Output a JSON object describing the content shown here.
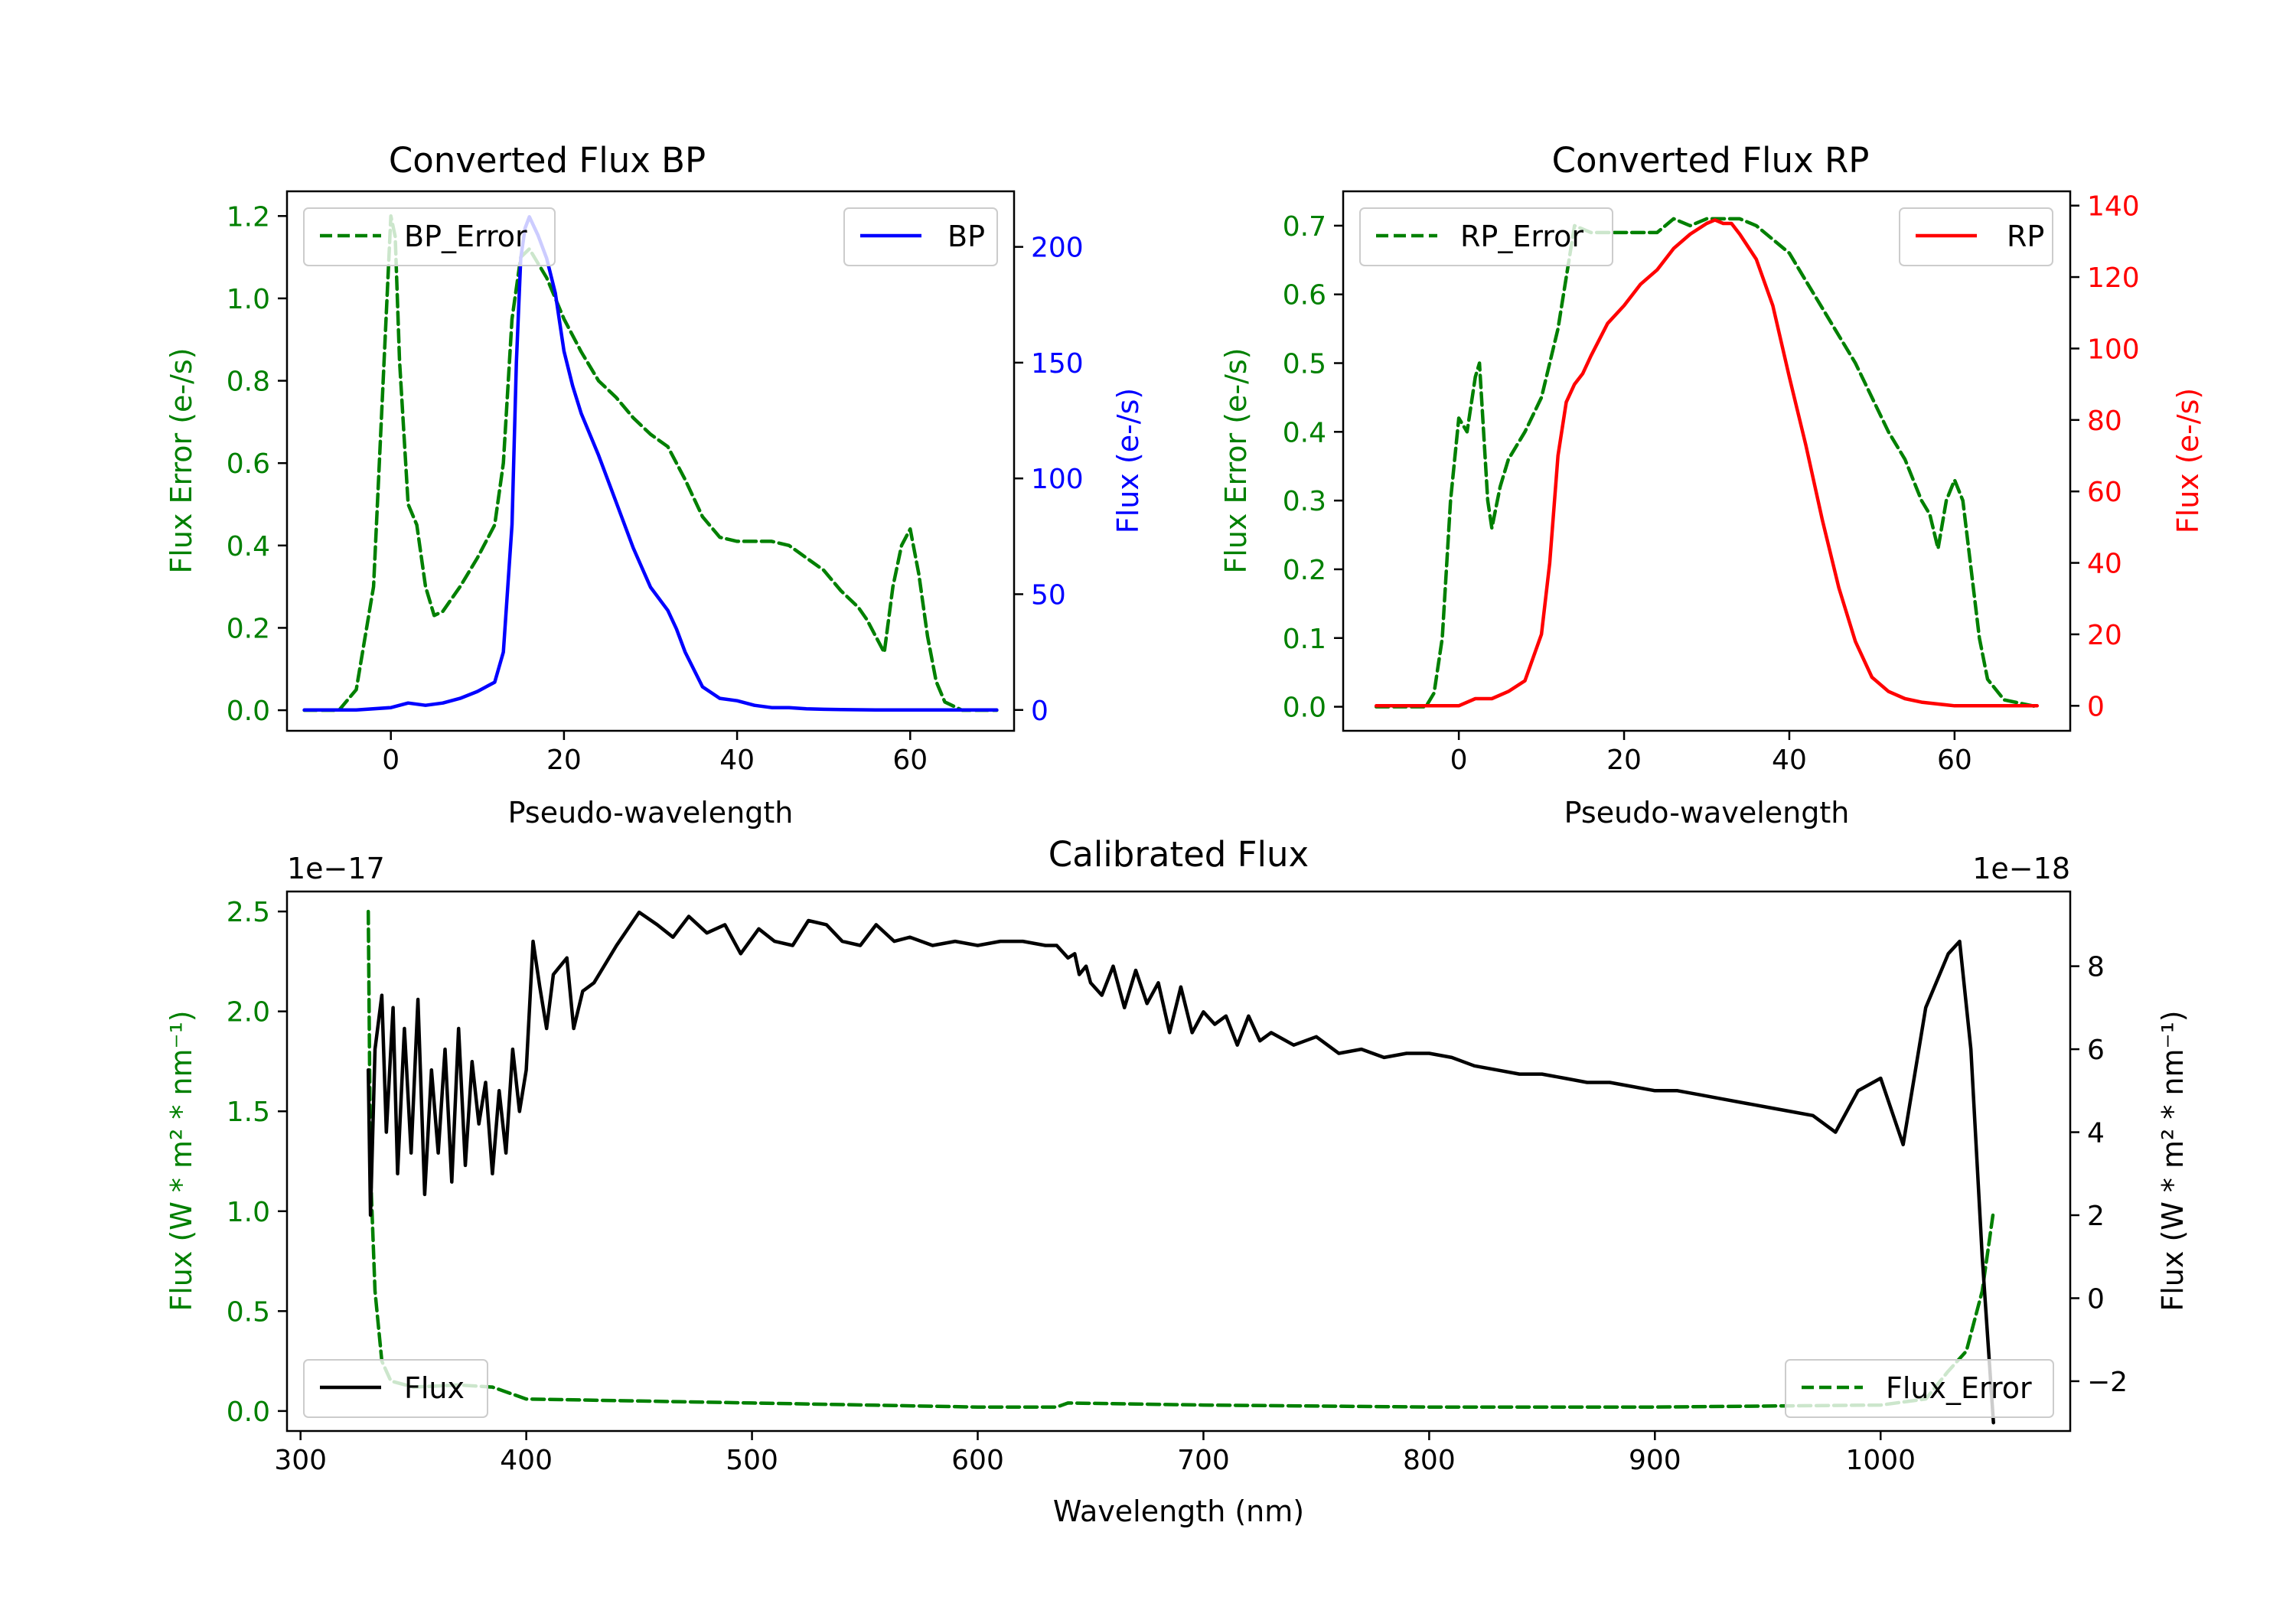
{
  "chart_data": [
    {
      "id": "bp",
      "type": "line",
      "title": "Converted Flux BP",
      "xlabel": "Pseudo-wavelength",
      "ylabel_left": "Flux Error (e-/s)",
      "ylabel_right": "Flux (e-/s)",
      "xlim": [
        -12,
        72
      ],
      "ylim_left": [
        -0.05,
        1.26
      ],
      "ylim_right": [
        -9,
        224
      ],
      "xticks": [
        0,
        20,
        40,
        60
      ],
      "xtick_labels": [
        "0",
        "20",
        "40",
        "60"
      ],
      "yticks_left": [
        0,
        0.2,
        0.4,
        0.6,
        0.8,
        1.0,
        1.2
      ],
      "ytick_labels_left": [
        "0.0",
        "0.2",
        "0.4",
        "0.6",
        "0.8",
        "1.0",
        "1.2"
      ],
      "yticks_right": [
        0,
        50,
        100,
        150,
        200
      ],
      "ytick_labels_right": [
        "0",
        "50",
        "100",
        "150",
        "200"
      ],
      "left_color": "#008000",
      "right_color": "#0000ff",
      "series": [
        {
          "name": "BP_Error",
          "axis": "left",
          "color": "#008000",
          "style": "dashed",
          "legend": "upper left",
          "x": [
            -10,
            -6,
            -4,
            -2,
            -1,
            0,
            0.5,
            1,
            2,
            3,
            4,
            5,
            6,
            8,
            10,
            12,
            13,
            14,
            15,
            16,
            18,
            20,
            22,
            24,
            26,
            28,
            30,
            32,
            34,
            36,
            38,
            40,
            44,
            46,
            48,
            50,
            52,
            54,
            55,
            56,
            57,
            58,
            59,
            60,
            61,
            62,
            63,
            64,
            66,
            70
          ],
          "y": [
            0,
            0,
            0.05,
            0.3,
            0.75,
            1.2,
            1.15,
            0.85,
            0.5,
            0.45,
            0.3,
            0.23,
            0.24,
            0.3,
            0.37,
            0.45,
            0.6,
            0.95,
            1.1,
            1.12,
            1.05,
            0.95,
            0.87,
            0.8,
            0.76,
            0.71,
            0.67,
            0.64,
            0.56,
            0.47,
            0.42,
            0.41,
            0.41,
            0.4,
            0.37,
            0.34,
            0.29,
            0.25,
            0.22,
            0.18,
            0.14,
            0.3,
            0.4,
            0.44,
            0.33,
            0.18,
            0.07,
            0.02,
            0,
            0
          ]
        },
        {
          "name": "BP",
          "axis": "right",
          "color": "#0000ff",
          "style": "solid",
          "legend": "upper right",
          "x": [
            -10,
            -4,
            0,
            2,
            4,
            6,
            8,
            10,
            12,
            13,
            14,
            14.5,
            15,
            15.5,
            16,
            17,
            18,
            19,
            20,
            21,
            22,
            24,
            26,
            28,
            30,
            32,
            33,
            34,
            36,
            38,
            40,
            42,
            44,
            46,
            48,
            50,
            52,
            54,
            56,
            58,
            60,
            64,
            70
          ],
          "y": [
            0,
            0,
            1,
            3,
            2,
            3,
            5,
            8,
            12,
            25,
            80,
            150,
            195,
            208,
            213,
            205,
            195,
            180,
            155,
            140,
            128,
            110,
            90,
            70,
            53,
            43,
            35,
            25,
            10,
            5,
            4,
            2,
            1,
            1,
            0.5,
            0.3,
            0.2,
            0.1,
            0,
            0,
            0,
            0,
            0
          ]
        }
      ]
    },
    {
      "id": "rp",
      "type": "line",
      "title": "Converted Flux RP",
      "xlabel": "Pseudo-wavelength",
      "ylabel_left": "Flux Error (e-/s)",
      "ylabel_right": "Flux (e-/s)",
      "xlim": [
        -14,
        74
      ],
      "ylim_left": [
        -0.035,
        0.75
      ],
      "ylim_right": [
        -7,
        144
      ],
      "xticks": [
        0,
        20,
        40,
        60
      ],
      "xtick_labels": [
        "0",
        "20",
        "40",
        "60"
      ],
      "yticks_left": [
        0,
        0.1,
        0.2,
        0.3,
        0.4,
        0.5,
        0.6,
        0.7
      ],
      "ytick_labels_left": [
        "0.0",
        "0.1",
        "0.2",
        "0.3",
        "0.4",
        "0.5",
        "0.6",
        "0.7"
      ],
      "yticks_right": [
        0,
        20,
        40,
        60,
        80,
        100,
        120,
        140
      ],
      "ytick_labels_right": [
        "0",
        "20",
        "40",
        "60",
        "80",
        "100",
        "120",
        "140"
      ],
      "left_color": "#008000",
      "right_color": "#ff0000",
      "series": [
        {
          "name": "RP_Error",
          "axis": "left",
          "color": "#008000",
          "style": "dashed",
          "legend": "upper left",
          "x": [
            -10,
            -4,
            -3,
            -2,
            -1,
            0,
            1,
            2,
            2.5,
            3,
            3.5,
            4,
            5,
            6,
            8,
            10,
            12,
            14,
            16,
            18,
            20,
            22,
            24,
            26,
            28,
            30,
            32,
            34,
            36,
            38,
            40,
            42,
            44,
            46,
            48,
            50,
            52,
            54,
            56,
            57,
            58,
            59,
            60,
            61,
            62,
            63,
            64,
            66,
            70
          ],
          "y": [
            0,
            0,
            0.02,
            0.1,
            0.3,
            0.42,
            0.4,
            0.48,
            0.5,
            0.4,
            0.3,
            0.26,
            0.32,
            0.36,
            0.4,
            0.45,
            0.55,
            0.7,
            0.69,
            0.69,
            0.69,
            0.69,
            0.69,
            0.71,
            0.7,
            0.71,
            0.71,
            0.71,
            0.7,
            0.68,
            0.66,
            0.62,
            0.58,
            0.54,
            0.5,
            0.45,
            0.4,
            0.36,
            0.3,
            0.28,
            0.23,
            0.3,
            0.33,
            0.3,
            0.2,
            0.1,
            0.04,
            0.01,
            0
          ]
        },
        {
          "name": "RP",
          "axis": "right",
          "color": "#ff0000",
          "style": "solid",
          "legend": "upper right",
          "x": [
            -10,
            -2,
            0,
            2,
            4,
            6,
            8,
            10,
            11,
            12,
            13,
            14,
            15,
            16,
            18,
            20,
            22,
            24,
            26,
            28,
            30,
            31,
            32,
            33,
            34,
            36,
            38,
            40,
            42,
            44,
            46,
            48,
            50,
            52,
            54,
            56,
            58,
            60,
            62,
            66,
            70
          ],
          "y": [
            0,
            0,
            0,
            2,
            2,
            4,
            7,
            20,
            40,
            70,
            85,
            90,
            93,
            98,
            107,
            112,
            118,
            122,
            128,
            132,
            135,
            136,
            135,
            135,
            132,
            125,
            112,
            92,
            73,
            52,
            33,
            18,
            8,
            4,
            2,
            1,
            0.5,
            0,
            0,
            0,
            0
          ]
        }
      ]
    },
    {
      "id": "cal",
      "type": "line",
      "title": "Calibrated Flux",
      "xlabel": "Wavelength (nm)",
      "ylabel_left": "Flux (W * m² * nm⁻¹)",
      "ylabel_right": "Flux (W * m² * nm⁻¹)",
      "offset_left": "1e−17",
      "offset_right": "1e−18",
      "xlim": [
        294,
        1084
      ],
      "ylim_left": [
        -0.1,
        2.6
      ],
      "ylim_right": [
        -3.2,
        9.8
      ],
      "xticks": [
        300,
        400,
        500,
        600,
        700,
        800,
        900,
        1000
      ],
      "xtick_labels": [
        "300",
        "400",
        "500",
        "600",
        "700",
        "800",
        "900",
        "1000"
      ],
      "yticks_left": [
        0,
        0.5,
        1.0,
        1.5,
        2.0,
        2.5
      ],
      "ytick_labels_left": [
        "0.0",
        "0.5",
        "1.0",
        "1.5",
        "2.0",
        "2.5"
      ],
      "yticks_right": [
        -2,
        0,
        2,
        4,
        6,
        8
      ],
      "ytick_labels_right": [
        "−2",
        "0",
        "2",
        "4",
        "6",
        "8"
      ],
      "left_color": "#008000",
      "right_color": "#000000",
      "series": [
        {
          "name": "Flux_Error",
          "axis": "left",
          "color": "#008000",
          "style": "dashed",
          "legend": "lower right",
          "x": [
            330,
            331,
            333,
            336,
            340,
            350,
            370,
            385,
            400,
            450,
            500,
            600,
            635,
            640,
            700,
            800,
            900,
            1000,
            1020,
            1030,
            1038,
            1045,
            1050
          ],
          "y": [
            2.5,
            1.2,
            0.6,
            0.25,
            0.15,
            0.12,
            0.13,
            0.12,
            0.06,
            0.05,
            0.04,
            0.02,
            0.02,
            0.04,
            0.03,
            0.02,
            0.02,
            0.03,
            0.06,
            0.2,
            0.3,
            0.6,
            1.0
          ]
        },
        {
          "name": "Flux",
          "axis": "right",
          "color": "#000000",
          "style": "solid",
          "legend": "lower left",
          "x": [
            330,
            331,
            333,
            336,
            338,
            341,
            343,
            346,
            349,
            352,
            355,
            358,
            361,
            364,
            367,
            370,
            373,
            376,
            379,
            382,
            385,
            388,
            391,
            394,
            397,
            400,
            403,
            406,
            409,
            412,
            415,
            418,
            421,
            425,
            430,
            440,
            450,
            458,
            465,
            472,
            480,
            488,
            495,
            503,
            510,
            518,
            525,
            533,
            540,
            548,
            555,
            563,
            570,
            580,
            590,
            600,
            610,
            620,
            630,
            635,
            640,
            643,
            645,
            648,
            650,
            655,
            660,
            665,
            670,
            675,
            680,
            685,
            690,
            695,
            700,
            705,
            710,
            715,
            720,
            725,
            730,
            740,
            750,
            760,
            770,
            780,
            790,
            800,
            810,
            820,
            830,
            840,
            850,
            860,
            870,
            880,
            890,
            900,
            910,
            920,
            930,
            940,
            950,
            960,
            970,
            980,
            990,
            1000,
            1010,
            1020,
            1030,
            1035,
            1040,
            1045,
            1050
          ],
          "y": [
            5.5,
            2,
            6,
            7.3,
            4,
            7,
            3,
            6.5,
            3.5,
            7.2,
            2.5,
            5.5,
            3.5,
            6,
            2.8,
            6.5,
            3.2,
            5.7,
            4.2,
            5.2,
            3,
            5,
            3.5,
            6,
            4.5,
            5.5,
            8.6,
            7.5,
            6.5,
            7.8,
            8,
            8.2,
            6.5,
            7.4,
            7.6,
            8.5,
            9.3,
            9,
            8.7,
            9.2,
            8.8,
            9,
            8.3,
            8.9,
            8.6,
            8.5,
            9.1,
            9.0,
            8.6,
            8.5,
            9.0,
            8.6,
            8.7,
            8.5,
            8.6,
            8.5,
            8.6,
            8.6,
            8.5,
            8.5,
            8.2,
            8.3,
            7.8,
            8.0,
            7.6,
            7.3,
            8.0,
            7.0,
            7.9,
            7.1,
            7.6,
            6.4,
            7.5,
            6.4,
            6.9,
            6.6,
            6.8,
            6.1,
            6.8,
            6.2,
            6.4,
            6.1,
            6.3,
            5.9,
            6.0,
            5.8,
            5.9,
            5.9,
            5.8,
            5.6,
            5.5,
            5.4,
            5.4,
            5.3,
            5.2,
            5.2,
            5.1,
            5.0,
            5.0,
            4.9,
            4.8,
            4.7,
            4.6,
            4.5,
            4.4,
            4.0,
            5.0,
            5.3,
            3.7,
            7.0,
            8.3,
            8.6,
            6.0,
            1.0,
            -3.0
          ]
        }
      ]
    }
  ]
}
